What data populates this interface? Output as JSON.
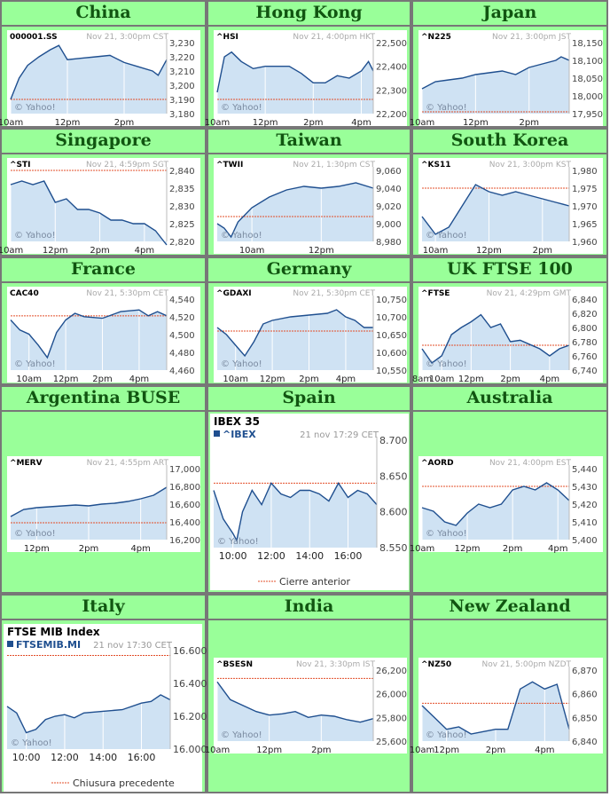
{
  "colors": {
    "page_bg": "#ffffff",
    "cell_bg": "#99ff99",
    "title": "#115511",
    "line": "#1f4f8f",
    "fill": "#cfe2f3",
    "ref": "#e34f2a",
    "grid": "#dddddd"
  },
  "chart_data": [
    {
      "type": "area",
      "title": "China",
      "symbol": "000001.SS",
      "stamp": "Nov 21, 3:00pm CST",
      "watermark": "© Yahoo!",
      "yticks": [
        "3,230",
        "3,220",
        "3,210",
        "3,200",
        "3,190",
        "3,180"
      ],
      "ylim": [
        3180,
        3230
      ],
      "ref": 3190,
      "xticks": [
        "10am",
        "12pm",
        "2pm"
      ],
      "xtick_pos": [
        0,
        2,
        4
      ],
      "xlim": [
        0,
        5.5
      ],
      "x": [
        0,
        0.3,
        0.6,
        1,
        1.4,
        1.7,
        2,
        2.5,
        3,
        3.5,
        4,
        4.5,
        5,
        5.2,
        5.5
      ],
      "y": [
        3190,
        3205,
        3214,
        3220,
        3225,
        3228,
        3218,
        3219,
        3220,
        3221,
        3216,
        3213,
        3210,
        3207,
        3218
      ]
    },
    {
      "type": "area",
      "title": "Hong Kong",
      "symbol": "^HSI",
      "stamp": "Nov 21, 4:00pm HKT",
      "watermark": "© Yahoo!",
      "yticks": [
        "22,500",
        "22,400",
        "22,300",
        "22,200"
      ],
      "ylim": [
        22200,
        22500
      ],
      "ref": 22260,
      "xticks": [
        "10am",
        "12pm",
        "2pm",
        "4pm"
      ],
      "xtick_pos": [
        0,
        2,
        4,
        6
      ],
      "xlim": [
        0,
        6.5
      ],
      "x": [
        0,
        0.3,
        0.6,
        1,
        1.5,
        2,
        2.5,
        3,
        3.5,
        4,
        4.5,
        5,
        5.5,
        6,
        6.3,
        6.5
      ],
      "y": [
        22290,
        22440,
        22460,
        22420,
        22390,
        22400,
        22400,
        22400,
        22370,
        22330,
        22330,
        22360,
        22350,
        22380,
        22420,
        22380
      ]
    },
    {
      "type": "area",
      "title": "Japan",
      "symbol": "^N225",
      "stamp": "Nov 21, 3:00pm JST",
      "watermark": "© Yahoo!",
      "yticks": [
        "18,150",
        "18,100",
        "18,050",
        "18,000",
        "17,950"
      ],
      "ylim": [
        17950,
        18150
      ],
      "ref": 17955,
      "xticks": [
        "10am",
        "12pm",
        "2pm"
      ],
      "xtick_pos": [
        0,
        2,
        4
      ],
      "xlim": [
        0,
        5.5
      ],
      "x": [
        0,
        0.5,
        1,
        1.5,
        2,
        2.5,
        3,
        3.5,
        4,
        4.5,
        5,
        5.2,
        5.5
      ],
      "y": [
        18020,
        18040,
        18045,
        18050,
        18060,
        18065,
        18070,
        18060,
        18080,
        18090,
        18100,
        18110,
        18100
      ]
    },
    {
      "type": "area",
      "title": "Singapore",
      "symbol": "^STI",
      "stamp": "Nov 21, 4:59pm SGT",
      "watermark": "© Yahoo!",
      "yticks": [
        "2,840",
        "2,835",
        "2,830",
        "2,825",
        "2,820"
      ],
      "ylim": [
        2820,
        2840
      ],
      "ref": 2840,
      "xticks": [
        "10am",
        "12pm",
        "2pm",
        "4pm"
      ],
      "xtick_pos": [
        0,
        2,
        4,
        6
      ],
      "xlim": [
        0,
        7
      ],
      "x": [
        0,
        0.5,
        1,
        1.5,
        2,
        2.5,
        3,
        3.5,
        4,
        4.5,
        5,
        5.5,
        6,
        6.5,
        7
      ],
      "y": [
        2836,
        2837,
        2836,
        2837,
        2831,
        2832,
        2829,
        2829,
        2828,
        2826,
        2826,
        2825,
        2825,
        2823,
        2819
      ]
    },
    {
      "type": "area",
      "title": "Taiwan",
      "symbol": "^TWII",
      "stamp": "Nov 21, 1:30pm CST",
      "watermark": "© Yahoo!",
      "yticks": [
        "9,060",
        "9,040",
        "9,020",
        "9,000",
        "8,980"
      ],
      "ylim": [
        8980,
        9060
      ],
      "ref": 9008,
      "xticks": [
        "10am",
        "12pm"
      ],
      "xtick_pos": [
        1,
        3
      ],
      "xlim": [
        0,
        4.5
      ],
      "x": [
        0,
        0.2,
        0.4,
        0.6,
        1,
        1.5,
        2,
        2.5,
        3,
        3.5,
        4,
        4.5
      ],
      "y": [
        9000,
        8995,
        8985,
        9002,
        9018,
        9030,
        9038,
        9042,
        9040,
        9042,
        9046,
        9040
      ]
    },
    {
      "type": "area",
      "title": "South Korea",
      "symbol": "^KS11",
      "stamp": "Nov 21, 3:00pm KST",
      "watermark": "© Yahoo!",
      "yticks": [
        "1,980",
        "1,975",
        "1,970",
        "1,965",
        "1,960"
      ],
      "ylim": [
        1960,
        1980
      ],
      "ref": 1975,
      "xticks": [
        "10am",
        "12pm",
        "2pm"
      ],
      "xtick_pos": [
        0.5,
        2.5,
        4.5
      ],
      "xlim": [
        0,
        5.5
      ],
      "x": [
        0,
        0.5,
        1,
        1.5,
        2,
        2.5,
        3,
        3.5,
        4,
        4.5,
        5,
        5.5
      ],
      "y": [
        1967,
        1962,
        1964,
        1970,
        1976,
        1974,
        1973,
        1974,
        1973,
        1972,
        1971,
        1970
      ]
    },
    {
      "type": "area",
      "title": "France",
      "symbol": "CAC40",
      "stamp": "Nov 21, 5:30pm CET",
      "watermark": "© Yahoo!",
      "yticks": [
        "4,540",
        "4,520",
        "4,500",
        "4,480",
        "4,460"
      ],
      "ylim": [
        4460,
        4545
      ],
      "ref": 4525,
      "xticks": [
        "10am",
        "12pm",
        "2pm",
        "4pm"
      ],
      "xtick_pos": [
        1,
        3,
        5,
        7
      ],
      "xlim": [
        0,
        8.5
      ],
      "x": [
        0,
        0.5,
        1,
        1.5,
        2,
        2.5,
        3,
        3.5,
        4,
        5,
        6,
        7,
        7.5,
        8,
        8.5
      ],
      "y": [
        4520,
        4508,
        4503,
        4490,
        4475,
        4505,
        4520,
        4528,
        4524,
        4522,
        4530,
        4532,
        4525,
        4530,
        4525
      ]
    },
    {
      "type": "area",
      "title": "Germany",
      "symbol": "^GDAXI",
      "stamp": "Nov 21, 5:30pm CET",
      "watermark": "© Yahoo!",
      "yticks": [
        "10,750",
        "10,700",
        "10,650",
        "10,600",
        "10,550"
      ],
      "ylim": [
        10550,
        10750
      ],
      "ref": 10660,
      "xticks": [
        "10am",
        "12pm",
        "2pm",
        "4pm"
      ],
      "xtick_pos": [
        1,
        3,
        5,
        7
      ],
      "xlim": [
        0,
        8.5
      ],
      "x": [
        0,
        0.5,
        1,
        1.5,
        2,
        2.5,
        3,
        4,
        5,
        6,
        6.5,
        7,
        7.5,
        8,
        8.5
      ],
      "y": [
        10670,
        10650,
        10620,
        10590,
        10630,
        10680,
        10690,
        10700,
        10705,
        10710,
        10720,
        10700,
        10690,
        10670,
        10670
      ]
    },
    {
      "type": "area",
      "title": "UK FTSE 100",
      "symbol": "^FTSE",
      "stamp": "Nov 21, 4:29pm GMT",
      "watermark": "© Yahoo!",
      "yticks": [
        "6,840",
        "6,820",
        "6,800",
        "6,780",
        "6,760",
        "6,740"
      ],
      "ylim": [
        6740,
        6840
      ],
      "ref": 6775,
      "xticks": [
        "8am",
        "10am",
        "12pm",
        "2pm",
        "4pm"
      ],
      "xtick_pos": [
        0,
        1,
        2.5,
        4.5,
        6.5
      ],
      "xlim": [
        0,
        7.5
      ],
      "x": [
        0,
        0.5,
        1,
        1.5,
        2,
        2.5,
        3,
        3.5,
        4,
        4.5,
        5,
        5.5,
        6,
        6.5,
        7,
        7.5
      ],
      "y": [
        6770,
        6750,
        6760,
        6790,
        6800,
        6808,
        6818,
        6800,
        6805,
        6780,
        6782,
        6776,
        6770,
        6760,
        6770,
        6775
      ]
    },
    {
      "type": "area",
      "title": "Argentina BUSE",
      "symbol": "^MERV",
      "stamp": "Nov 21, 4:55pm ART",
      "watermark": "© Yahoo!",
      "yticks": [
        "17,000",
        "16,800",
        "16,600",
        "16,400",
        "16,200"
      ],
      "ylim": [
        16200,
        17000
      ],
      "ref": 16390,
      "xticks": [
        "12pm",
        "2pm",
        "4pm"
      ],
      "xtick_pos": [
        1,
        3,
        5
      ],
      "xlim": [
        0,
        6
      ],
      "x": [
        0,
        0.5,
        1,
        1.5,
        2,
        2.5,
        3,
        3.5,
        4,
        4.5,
        5,
        5.5,
        6
      ],
      "y": [
        16460,
        16540,
        16560,
        16570,
        16580,
        16590,
        16580,
        16600,
        16610,
        16630,
        16660,
        16700,
        16790
      ]
    },
    {
      "type": "area",
      "title": "Spain",
      "chart_title": "IBEX 35",
      "symbol": "^IBEX",
      "stamp": "21 nov 17:29 CET",
      "watermark": "© Yahoo!",
      "legend": "Cierre anterior",
      "yticks": [
        "8.700",
        "8.650",
        "8.600",
        "8.550"
      ],
      "ylim": [
        8550,
        8700
      ],
      "ref": 8640,
      "xticks": [
        "10:00",
        "12:00",
        "14:00",
        "16:00"
      ],
      "xtick_pos": [
        1,
        3,
        5,
        7
      ],
      "xlim": [
        0,
        8.5
      ],
      "x": [
        0,
        0.5,
        1,
        1.2,
        1.5,
        2,
        2.5,
        3,
        3.5,
        4,
        4.5,
        5,
        5.5,
        6,
        6.5,
        7,
        7.5,
        8,
        8.5
      ],
      "y": [
        8630,
        8590,
        8570,
        8560,
        8600,
        8630,
        8610,
        8640,
        8625,
        8620,
        8630,
        8630,
        8625,
        8615,
        8640,
        8620,
        8630,
        8625,
        8610
      ]
    },
    {
      "type": "area",
      "title": "Australia",
      "symbol": "^AORD",
      "stamp": "Nov 21, 4:00pm EST",
      "watermark": "© Yahoo!",
      "yticks": [
        "5,440",
        "5,430",
        "5,420",
        "5,410",
        "5,400"
      ],
      "ylim": [
        5400,
        5440
      ],
      "ref": 5430,
      "xticks": [
        "10am",
        "12pm",
        "2pm",
        "4pm"
      ],
      "xtick_pos": [
        0,
        2,
        4,
        6
      ],
      "xlim": [
        0,
        6.5
      ],
      "x": [
        0,
        0.5,
        1,
        1.5,
        2,
        2.5,
        3,
        3.5,
        4,
        4.5,
        5,
        5.5,
        6,
        6.5
      ],
      "y": [
        5418,
        5416,
        5410,
        5408,
        5415,
        5420,
        5418,
        5420,
        5428,
        5430,
        5428,
        5432,
        5428,
        5422
      ]
    },
    {
      "type": "area",
      "title": "Italy",
      "chart_title": "FTSE MIB Index",
      "symbol": "FTSEMIB.MI",
      "stamp": "21 nov 17:30 CET",
      "watermark": "© Yahoo!",
      "legend": "Chiusura precedente",
      "yticks": [
        "16.600",
        "16.400",
        "16.200",
        "16.000"
      ],
      "ylim": [
        16000,
        16600
      ],
      "ref": 16570,
      "xticks": [
        "10:00",
        "12:00",
        "14:00",
        "16:00"
      ],
      "xtick_pos": [
        1,
        3,
        5,
        7
      ],
      "xlim": [
        0,
        8.5
      ],
      "x": [
        0,
        0.5,
        1,
        1.5,
        2,
        2.5,
        3,
        3.5,
        4,
        5,
        6,
        7,
        7.5,
        8,
        8.5
      ],
      "y": [
        16260,
        16220,
        16100,
        16120,
        16180,
        16200,
        16210,
        16190,
        16220,
        16230,
        16240,
        16280,
        16290,
        16330,
        16300
      ]
    },
    {
      "type": "area",
      "title": "India",
      "symbol": "^BSESN",
      "stamp": "Nov 21, 3:30pm IST",
      "watermark": "© Yahoo!",
      "yticks": [
        "26,200",
        "26,000",
        "25,800",
        "25,600"
      ],
      "ylim": [
        25600,
        26200
      ],
      "ref": 26130,
      "xticks": [
        "10am",
        "12pm",
        "2pm"
      ],
      "xtick_pos": [
        0,
        2,
        4
      ],
      "xlim": [
        0,
        6
      ],
      "x": [
        0,
        0.5,
        1,
        1.5,
        2,
        2.5,
        3,
        3.5,
        4,
        4.5,
        5,
        5.5,
        6
      ],
      "y": [
        26100,
        25950,
        25900,
        25850,
        25820,
        25830,
        25850,
        25800,
        25820,
        25810,
        25780,
        25760,
        25790
      ]
    },
    {
      "type": "area",
      "title": "New Zealand",
      "symbol": "^NZ50",
      "stamp": "Nov 21, 5:00pm NZDT",
      "watermark": "© Yahoo!",
      "yticks": [
        "6,870",
        "6,860",
        "6,850",
        "6,840"
      ],
      "ylim": [
        6840,
        6870
      ],
      "ref": 6856,
      "xticks": [
        "10am",
        "12pm",
        "2pm",
        "4pm"
      ],
      "xtick_pos": [
        0,
        1,
        3,
        5
      ],
      "xlim": [
        0,
        6
      ],
      "x": [
        0,
        0.5,
        1,
        1.5,
        2,
        2.5,
        3,
        3.5,
        4,
        4.5,
        5,
        5.5,
        6
      ],
      "y": [
        6855,
        6850,
        6845,
        6846,
        6843,
        6844,
        6845,
        6845,
        6862,
        6865,
        6862,
        6864,
        6845
      ]
    }
  ]
}
